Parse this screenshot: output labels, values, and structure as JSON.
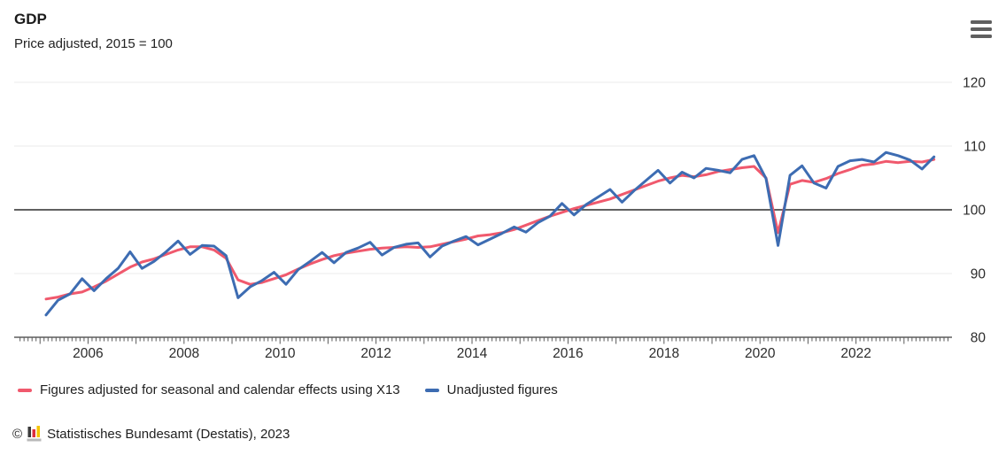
{
  "header": {
    "title": "GDP",
    "subtitle": "Price adjusted, 2015 = 100"
  },
  "menu": {
    "icon": "hamburger-icon"
  },
  "chart_data": {
    "type": "line",
    "frequency": "quarterly",
    "period_start": "2005-Q1",
    "period_end": "2023-Q3",
    "x_axis": {
      "tick_labels": [
        "2006",
        "2008",
        "2010",
        "2012",
        "2014",
        "2016",
        "2018",
        "2020",
        "2022"
      ],
      "minor_ticks": "monthly",
      "range_years": [
        2005,
        2023.75
      ]
    },
    "y_axis": {
      "ticks": [
        80,
        90,
        100,
        110,
        120
      ],
      "ylim": [
        80,
        120
      ],
      "baseline_value": 100,
      "position": "right"
    },
    "grid": "horizontal-only",
    "legend_position": "bottom",
    "series": [
      {
        "name": "Figures adjusted for seasonal and calendar effects using X13",
        "color": "#f0596d",
        "values": [
          86.0,
          86.3,
          86.8,
          87.1,
          87.9,
          88.8,
          89.9,
          91.0,
          91.8,
          92.3,
          93.0,
          93.7,
          94.2,
          94.2,
          93.7,
          92.4,
          89.0,
          88.3,
          88.6,
          89.2,
          89.8,
          90.7,
          91.5,
          92.2,
          92.8,
          93.2,
          93.5,
          93.8,
          94.0,
          94.1,
          94.2,
          94.1,
          94.2,
          94.6,
          95.0,
          95.4,
          95.9,
          96.1,
          96.4,
          96.9,
          97.6,
          98.3,
          99.0,
          99.6,
          100.2,
          100.7,
          101.2,
          101.7,
          102.4,
          103.1,
          103.8,
          104.5,
          105.0,
          105.4,
          105.2,
          105.5,
          106.0,
          106.3,
          106.6,
          106.8,
          105.0,
          96.4,
          104.0,
          104.6,
          104.3,
          104.9,
          105.7,
          106.3,
          107.0,
          107.2,
          107.6,
          107.4,
          107.6,
          107.5,
          107.9
        ]
      },
      {
        "name": "Unadjusted figures",
        "color": "#3d6cb2",
        "values": [
          83.5,
          85.8,
          86.8,
          89.2,
          87.3,
          89.2,
          90.8,
          93.4,
          90.8,
          91.9,
          93.4,
          95.1,
          93.0,
          94.4,
          94.3,
          92.8,
          86.2,
          87.9,
          88.9,
          90.2,
          88.3,
          90.6,
          91.9,
          93.3,
          91.7,
          93.3,
          94.0,
          94.9,
          92.9,
          94.1,
          94.6,
          94.8,
          92.6,
          94.3,
          95.1,
          95.8,
          94.5,
          95.4,
          96.3,
          97.3,
          96.5,
          98.0,
          99.0,
          101.0,
          99.2,
          100.8,
          102.0,
          103.2,
          101.2,
          103.0,
          104.6,
          106.2,
          104.2,
          105.9,
          105.0,
          106.5,
          106.2,
          105.8,
          107.9,
          108.5,
          104.9,
          94.4,
          105.4,
          106.9,
          104.2,
          103.4,
          106.8,
          107.7,
          107.9,
          107.5,
          109.0,
          108.5,
          107.8,
          106.4,
          108.3
        ]
      }
    ]
  },
  "colors": {
    "grid_line": "#ebebeb",
    "baseline_100": "#2d2d2d",
    "axis_line": "#3c3c3c",
    "tick_mark": "#5a5a5a",
    "axis_text": "#2b2b2b",
    "menu_icon": "#5f5f5f"
  },
  "footer": {
    "copyright_symbol": "©",
    "logo_icon": "destatis-bar-chart-logo",
    "source_text": "Statistisches Bundesamt (Destatis), 2023",
    "logo_colors": {
      "black": "#3a3a3a",
      "red": "#dc2e3e",
      "gold": "#f5c400",
      "base": "#b9b9b9"
    }
  }
}
